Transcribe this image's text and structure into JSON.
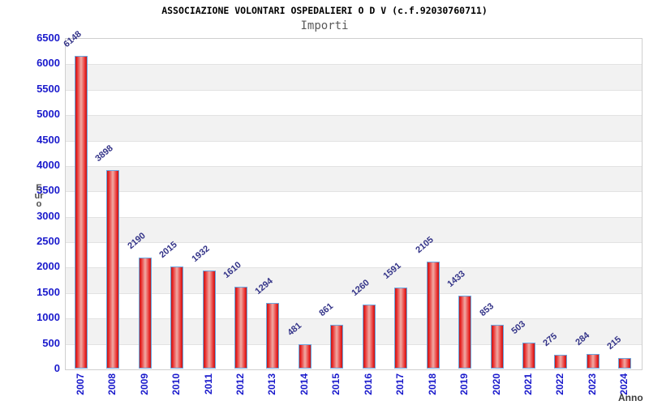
{
  "header": {
    "title": "ASSOCIAZIONE VOLONTARI OSPEDALIERI O D V (c.f.92030760711)",
    "subtitle": "Importi"
  },
  "chart_data": {
    "type": "bar",
    "title": "ASSOCIAZIONE VOLONTARI OSPEDALIERI O D V (c.f.92030760711)",
    "subtitle": "Importi",
    "xlabel": "Anno",
    "ylabel": "Euro",
    "categories": [
      "2007",
      "2008",
      "2009",
      "2010",
      "2011",
      "2012",
      "2013",
      "2014",
      "2015",
      "2016",
      "2017",
      "2018",
      "2019",
      "2020",
      "2021",
      "2022",
      "2023",
      "2024"
    ],
    "values": [
      6148,
      3898,
      2190,
      2015,
      1932,
      1610,
      1294,
      481,
      861,
      1260,
      1591,
      2105,
      1433,
      853,
      503,
      275,
      284,
      215
    ],
    "ylim": [
      0,
      6500
    ],
    "ytick_step": 500,
    "grid": true,
    "legend_position": "none",
    "band_colors": [
      "#ffffff",
      "#f2f2f2"
    ]
  },
  "colors": {
    "bar_edge_red": "#e82424",
    "bar_center": "#f0aaa4",
    "bar_border_blue": "#6aa7e0",
    "tick_label_blue": "#1a1acc",
    "value_label_navy": "#333388",
    "axis_title_gray": "#4d4d4d",
    "subtitle_gray": "#595959",
    "band_gray": "#f2f2f2",
    "grid_line": "#e2e2e2",
    "frame": "#cfcfcf"
  }
}
